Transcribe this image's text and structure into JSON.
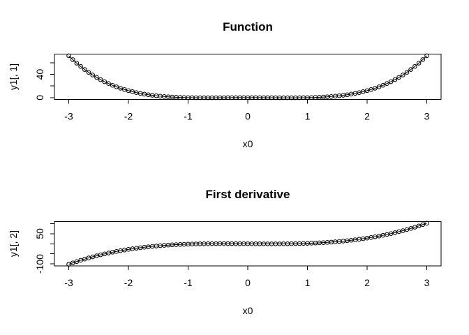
{
  "figure": {
    "background": "#ffffff",
    "foreground": "#000000"
  },
  "chart_data": [
    {
      "type": "line",
      "title": "Function",
      "xlabel": "x0",
      "ylabel": "y1[, 1]",
      "marker": "open-circle",
      "grid": false,
      "legend_position": "none",
      "xlim": [
        -3.24,
        3.24
      ],
      "ylim": [
        -3.15,
        74.9
      ],
      "x_ticks": [
        -3,
        -2,
        -1,
        0,
        1,
        2,
        3
      ],
      "x_tick_labels": [
        "-3",
        "-2",
        "-1",
        "0",
        "1",
        "2",
        "3"
      ],
      "y_ticks": [
        0,
        20,
        40,
        60
      ],
      "y_tick_labels": [
        "0",
        "",
        "40",
        ""
      ],
      "x": [
        -3,
        -2.933,
        -2.867,
        -2.8,
        -2.733,
        -2.667,
        -2.6,
        -2.533,
        -2.467,
        -2.4,
        -2.333,
        -2.267,
        -2.2,
        -2.133,
        -2.067,
        -2,
        -1.933,
        -1.867,
        -1.8,
        -1.733,
        -1.667,
        -1.6,
        -1.533,
        -1.467,
        -1.4,
        -1.333,
        -1.267,
        -1.2,
        -1.133,
        -1.067,
        -1,
        -0.933,
        -0.867,
        -0.8,
        -0.733,
        -0.667,
        -0.6,
        -0.533,
        -0.467,
        -0.4,
        -0.333,
        -0.267,
        -0.2,
        -0.133,
        -0.067,
        0,
        0.067,
        0.133,
        0.2,
        0.267,
        0.333,
        0.4,
        0.467,
        0.533,
        0.6,
        0.667,
        0.733,
        0.8,
        0.867,
        0.933,
        1,
        1.067,
        1.133,
        1.2,
        1.267,
        1.333,
        1.4,
        1.467,
        1.533,
        1.6,
        1.667,
        1.733,
        1.8,
        1.867,
        1.933,
        2,
        2.067,
        2.133,
        2.2,
        2.267,
        2.333,
        2.4,
        2.467,
        2.533,
        2.6,
        2.667,
        2.733,
        2.8,
        2.867,
        2.933,
        3
      ],
      "y": [
        72,
        65.432,
        59.314,
        53.626,
        48.347,
        43.457,
        38.938,
        34.771,
        30.937,
        27.418,
        24.198,
        21.259,
        18.585,
        16.161,
        13.971,
        12,
        10.233,
        8.657,
        7.258,
        6.022,
        4.938,
        3.994,
        3.177,
        2.476,
        1.882,
        1.383,
        0.97,
        0.634,
        0.365,
        0.157,
        0,
        -0.112,
        -0.187,
        -0.23,
        -0.249,
        -0.247,
        -0.23,
        -0.204,
        -0.17,
        -0.134,
        -0.099,
        -0.066,
        -0.038,
        -0.017,
        -0.004,
        0,
        -0.004,
        -0.017,
        -0.038,
        -0.066,
        -0.099,
        -0.134,
        -0.17,
        -0.204,
        -0.23,
        -0.247,
        -0.249,
        -0.23,
        -0.187,
        -0.112,
        0,
        0.157,
        0.365,
        0.634,
        0.97,
        1.383,
        1.882,
        2.476,
        3.177,
        3.994,
        4.938,
        6.022,
        7.258,
        8.657,
        10.233,
        12,
        13.971,
        16.161,
        18.585,
        21.259,
        24.198,
        27.418,
        30.937,
        34.771,
        38.938,
        43.457,
        48.347,
        53.626,
        59.314,
        65.432,
        72
      ]
    },
    {
      "type": "line",
      "title": "First derivative",
      "xlabel": "x0",
      "ylabel": "y1[, 2]",
      "marker": "open-circle",
      "grid": false,
      "legend_position": "none",
      "xlim": [
        -3.24,
        3.24
      ],
      "ylim": [
        -110.2,
        110.2
      ],
      "x_ticks": [
        -3,
        -2,
        -1,
        0,
        1,
        2,
        3
      ],
      "x_tick_labels": [
        "-3",
        "-2",
        "-1",
        "0",
        "1",
        "2",
        "3"
      ],
      "y_ticks": [
        -100,
        -50,
        0,
        50,
        100
      ],
      "y_tick_labels": [
        "-100",
        "",
        "",
        "50",
        ""
      ],
      "x": [
        -3,
        -2.933,
        -2.867,
        -2.8,
        -2.733,
        -2.667,
        -2.6,
        -2.533,
        -2.467,
        -2.4,
        -2.333,
        -2.267,
        -2.2,
        -2.133,
        -2.067,
        -2,
        -1.933,
        -1.867,
        -1.8,
        -1.733,
        -1.667,
        -1.6,
        -1.533,
        -1.467,
        -1.4,
        -1.333,
        -1.267,
        -1.2,
        -1.133,
        -1.067,
        -1,
        -0.933,
        -0.867,
        -0.8,
        -0.733,
        -0.667,
        -0.6,
        -0.533,
        -0.467,
        -0.4,
        -0.333,
        -0.267,
        -0.2,
        -0.133,
        -0.067,
        0,
        0.067,
        0.133,
        0.2,
        0.267,
        0.333,
        0.4,
        0.467,
        0.533,
        0.6,
        0.667,
        0.733,
        0.8,
        0.867,
        0.933,
        1,
        1.067,
        1.133,
        1.2,
        1.267,
        1.333,
        1.4,
        1.467,
        1.533,
        1.6,
        1.667,
        1.733,
        1.8,
        1.867,
        1.933,
        2,
        2.067,
        2.133,
        2.2,
        2.267,
        2.333,
        2.4,
        2.467,
        2.533,
        2.6,
        2.667,
        2.733,
        2.8,
        2.867,
        2.933,
        3
      ],
      "y": [
        -102,
        -95.092,
        -88.497,
        -82.208,
        -76.218,
        -70.519,
        -65.104,
        -59.967,
        -55.1,
        -50.496,
        -46.148,
        -42.049,
        -38.192,
        -34.57,
        -31.175,
        -28,
        -25.039,
        -22.284,
        -19.728,
        -17.364,
        -15.185,
        -13.184,
        -11.353,
        -9.687,
        -8.176,
        -6.815,
        -5.596,
        -4.512,
        -3.556,
        -2.721,
        -2,
        -1.386,
        -0.871,
        -0.448,
        -0.111,
        0.148,
        0.336,
        0.46,
        0.527,
        0.544,
        0.519,
        0.457,
        0.368,
        0.257,
        0.132,
        0,
        -0.132,
        -0.257,
        -0.368,
        -0.457,
        -0.519,
        -0.544,
        -0.527,
        -0.46,
        -0.336,
        -0.148,
        0.111,
        0.448,
        0.871,
        1.386,
        2,
        2.721,
        3.556,
        4.512,
        5.596,
        6.815,
        8.176,
        9.687,
        11.353,
        13.184,
        15.185,
        17.364,
        19.728,
        22.284,
        25.039,
        28,
        31.175,
        34.57,
        38.192,
        42.049,
        46.148,
        50.496,
        55.1,
        59.967,
        65.104,
        70.519,
        76.218,
        82.208,
        88.497,
        95.092,
        102
      ]
    }
  ]
}
